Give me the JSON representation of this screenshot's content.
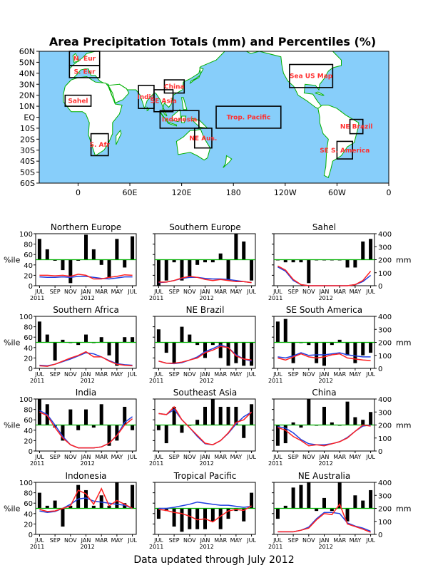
{
  "page": {
    "title": "Area Precipitation Totals (mm) and Percentiles (%)",
    "footer": "Data updated through July 2012"
  },
  "colors": {
    "ocean": "#87cefa",
    "land": "#ffffff",
    "coast": "#00b000",
    "region_label": "#ff3030",
    "bar": "#000000",
    "median_line": "#00b000",
    "red_line": "#ff2020",
    "blue_line": "#2040e0"
  },
  "map": {
    "lat_labels": [
      "60N",
      "50N",
      "40N",
      "30N",
      "20N",
      "10N",
      "EQ",
      "10S",
      "20S",
      "30S",
      "40S",
      "50S",
      "60S"
    ],
    "lon_labels": [
      "0",
      "60E",
      "120E",
      "180",
      "120W",
      "60W",
      "0"
    ],
    "regions": [
      {
        "label": "N. Eur",
        "lon": [
          -10,
          25
        ],
        "lat": [
          47,
          60
        ]
      },
      {
        "label": "S. Eur",
        "lon": [
          -10,
          25
        ],
        "lat": [
          36,
          47
        ]
      },
      {
        "label": "Sahel",
        "lon": [
          -15,
          15
        ],
        "lat": [
          10,
          20
        ]
      },
      {
        "label": "S. Afr",
        "lon": [
          15,
          35
        ],
        "lat": [
          -35,
          -15
        ]
      },
      {
        "label": "India",
        "lon": [
          70,
          88
        ],
        "lat": [
          8,
          29
        ]
      },
      {
        "label": "SE Asia",
        "lon": [
          88,
          110
        ],
        "lat": [
          5,
          25
        ]
      },
      {
        "label": "China",
        "lon": [
          100,
          123
        ],
        "lat": [
          22,
          34
        ]
      },
      {
        "label": "Indonesia",
        "lon": [
          95,
          140
        ],
        "lat": [
          -10,
          6
        ]
      },
      {
        "label": "Trop. Pacific",
        "lon": [
          160,
          235
        ],
        "lat": [
          -10,
          10
        ]
      },
      {
        "label": "NE Aus.",
        "lon": [
          135,
          155
        ],
        "lat": [
          -28,
          -10
        ]
      },
      {
        "label": "Sea US Map",
        "lon": [
          245,
          295
        ],
        "lat": [
          27,
          48
        ]
      },
      {
        "label": "NE Brazil",
        "lon": [
          315,
          330
        ],
        "lat": [
          -15,
          -2
        ]
      },
      {
        "label": "SE S. America",
        "lon": [
          300,
          318
        ],
        "lat": [
          -38,
          -22
        ]
      }
    ]
  },
  "chart_data": {
    "type": "bar",
    "x_tick_labels": [
      "JUL",
      "SEP",
      "NOV",
      "JAN",
      "MAR",
      "MAY",
      "JUL"
    ],
    "year_labels": [
      "2011",
      "2012"
    ],
    "left_axis_label": "%ile",
    "left_ticks": [
      0,
      20,
      40,
      60,
      80,
      100
    ],
    "right_axis_label": "mm",
    "right_ticks": [
      0,
      100,
      200,
      300,
      400
    ],
    "months": [
      "Jul 2011",
      "Aug 2011",
      "Sep 2011",
      "Oct 2011",
      "Nov 2011",
      "Dec 2011",
      "Jan 2012",
      "Feb 2012",
      "Mar 2012",
      "Apr 2012",
      "May 2012",
      "Jun 2012",
      "Jul 2012"
    ],
    "panels": [
      {
        "title": "Northern Europe",
        "right_scale": 200,
        "percentiles": [
          90,
          70,
          48,
          30,
          5,
          48,
          98,
          70,
          40,
          15,
          90,
          35,
          95
        ],
        "red": [
          20,
          20,
          19,
          20,
          18,
          22,
          20,
          13,
          13,
          16,
          18,
          21,
          20
        ],
        "blue": [
          17,
          16,
          16,
          17,
          16,
          18,
          18,
          16,
          14,
          13,
          15,
          17,
          17
        ]
      },
      {
        "title": "Southern Europe",
        "right_scale": 200,
        "percentiles": [
          0,
          10,
          45,
          10,
          15,
          40,
          45,
          45,
          62,
          10,
          100,
          85,
          10
        ],
        "red": [
          7,
          7,
          10,
          15,
          18,
          16,
          12,
          10,
          12,
          10,
          8,
          8,
          6
        ],
        "blue": [
          6,
          7,
          10,
          14,
          16,
          16,
          14,
          13,
          13,
          12,
          10,
          8,
          6
        ]
      },
      {
        "title": "Sahel",
        "right_scale": 400,
        "right_axis_label": "mm",
        "percentiles": [
          50,
          45,
          45,
          45,
          5,
          50,
          50,
          50,
          50,
          35,
          35,
          85,
          90
        ],
        "red": [
          38,
          30,
          12,
          2,
          0,
          0,
          0,
          0,
          0,
          0,
          2,
          10,
          28
        ],
        "blue": [
          36,
          28,
          10,
          2,
          0,
          0,
          0,
          0,
          0,
          0,
          2,
          8,
          20
        ]
      },
      {
        "title": "Southern Africa",
        "right_scale": 200,
        "percentiles": [
          90,
          65,
          15,
          55,
          50,
          45,
          65,
          50,
          60,
          25,
          5,
          60,
          60
        ],
        "red": [
          5,
          4,
          8,
          14,
          20,
          25,
          32,
          22,
          22,
          14,
          8,
          6,
          5
        ],
        "blue": [
          6,
          5,
          8,
          13,
          18,
          24,
          30,
          28,
          22,
          15,
          9,
          7,
          6
        ]
      },
      {
        "title": "NE Brazil",
        "right_scale": 400,
        "right_axis_label": "",
        "percentiles": [
          75,
          30,
          10,
          80,
          65,
          45,
          20,
          45,
          20,
          5,
          10,
          5,
          5
        ],
        "red": [
          14,
          10,
          10,
          12,
          16,
          20,
          30,
          35,
          42,
          40,
          24,
          18,
          16
        ],
        "blue": [
          14,
          10,
          9,
          11,
          16,
          22,
          32,
          38,
          45,
          40,
          26,
          18,
          14
        ]
      },
      {
        "title": "SE South America",
        "right_scale": 400,
        "right_axis_label": "mm",
        "percentiles": [
          90,
          95,
          10,
          50,
          45,
          10,
          5,
          45,
          55,
          25,
          10,
          25,
          30
        ],
        "red": [
          20,
          16,
          22,
          28,
          22,
          20,
          22,
          26,
          28,
          20,
          18,
          16,
          15
        ],
        "blue": [
          22,
          20,
          24,
          30,
          25,
          26,
          26,
          28,
          30,
          26,
          24,
          22,
          22
        ]
      },
      {
        "title": "India",
        "right_scale": 400,
        "right_axis_label": "",
        "percentiles": [
          100,
          90,
          45,
          20,
          80,
          40,
          80,
          45,
          90,
          10,
          20,
          85,
          40
        ],
        "red": [
          75,
          68,
          45,
          25,
          12,
          6,
          6,
          6,
          8,
          15,
          30,
          50,
          62
        ],
        "blue": [
          78,
          70,
          50,
          28,
          12,
          6,
          6,
          6,
          8,
          15,
          30,
          55,
          66
        ]
      },
      {
        "title": "Southeast Asia",
        "right_scale": 400,
        "right_axis_label": "",
        "percentiles": [
          40,
          15,
          85,
          35,
          50,
          60,
          85,
          100,
          85,
          85,
          85,
          25,
          90
        ],
        "red": [
          72,
          70,
          85,
          60,
          45,
          30,
          15,
          12,
          20,
          35,
          55,
          60,
          75
        ],
        "blue": [
          72,
          70,
          80,
          60,
          45,
          28,
          14,
          12,
          20,
          34,
          52,
          66,
          75
        ]
      },
      {
        "title": "China",
        "right_scale": 400,
        "right_axis_label": "mm",
        "percentiles": [
          10,
          15,
          55,
          45,
          100,
          50,
          85,
          55,
          50,
          95,
          65,
          60,
          75
        ],
        "red": [
          45,
          40,
          28,
          20,
          10,
          12,
          10,
          14,
          18,
          25,
          38,
          50,
          48
        ],
        "blue": [
          47,
          44,
          35,
          22,
          14,
          12,
          12,
          14,
          18,
          26,
          38,
          48,
          50
        ]
      },
      {
        "title": "Indonesia",
        "right_scale": 400,
        "right_axis_label": "",
        "percentiles": [
          80,
          55,
          65,
          15,
          55,
          95,
          85,
          55,
          75,
          55,
          100,
          60,
          95
        ],
        "red": [
          48,
          44,
          45,
          50,
          55,
          85,
          78,
          58,
          88,
          55,
          65,
          58,
          50
        ],
        "blue": [
          45,
          42,
          44,
          50,
          58,
          68,
          70,
          64,
          62,
          60,
          58,
          56,
          50
        ]
      },
      {
        "title": "Tropical Pacific",
        "right_scale": 400,
        "right_axis_label": "",
        "percentiles": [
          30,
          45,
          15,
          5,
          10,
          10,
          10,
          25,
          10,
          30,
          45,
          25,
          80
        ],
        "red": [
          48,
          46,
          42,
          40,
          35,
          28,
          30,
          24,
          35,
          45,
          48,
          46,
          55
        ],
        "blue": [
          50,
          50,
          52,
          55,
          58,
          62,
          60,
          58,
          56,
          56,
          54,
          52,
          54
        ]
      },
      {
        "title": "NE Australia",
        "right_scale": 400,
        "right_axis_label": "mm",
        "percentiles": [
          30,
          55,
          90,
          95,
          100,
          45,
          70,
          45,
          100,
          25,
          75,
          65,
          85
        ],
        "red": [
          5,
          5,
          5,
          8,
          12,
          28,
          40,
          38,
          58,
          20,
          15,
          10,
          4
        ],
        "blue": [
          5,
          5,
          5,
          8,
          14,
          30,
          42,
          42,
          40,
          22,
          16,
          12,
          6
        ]
      }
    ]
  }
}
